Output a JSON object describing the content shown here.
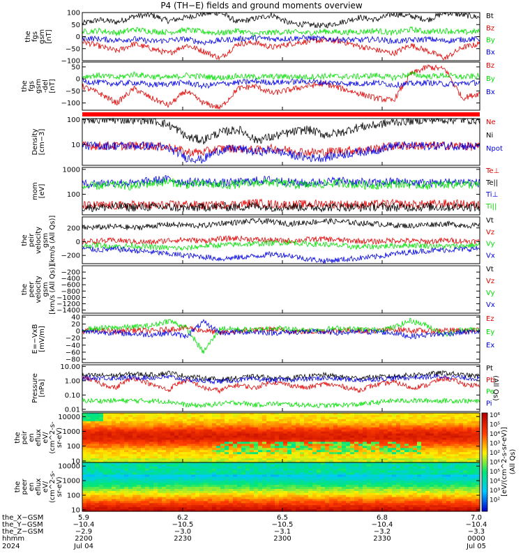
{
  "title": "P4 (TH−E) fields and ground moments overview",
  "colors": {
    "black": "#000000",
    "red": "#e00000",
    "green": "#00e000",
    "blue": "#0000e0",
    "flag_bar": "#ff0000"
  },
  "chart_data": [
    {
      "type": "line",
      "panel": "fgs_gsm",
      "ylabel_lines": [
        "the",
        "fgs",
        "gsm",
        "[nT]"
      ],
      "ylim": [
        -100,
        100
      ],
      "ytick_labels": [
        "100",
        "50",
        "0",
        "−50",
        "−100"
      ],
      "ytick_values": [
        100,
        50,
        0,
        -50,
        -100
      ],
      "series": [
        {
          "name": "Bt",
          "color": "black",
          "values": [
            55,
            70,
            60,
            85,
            90,
            65,
            80,
            95,
            100,
            60,
            75,
            90,
            55,
            50,
            45,
            60,
            80,
            70,
            95,
            85,
            70,
            100,
            90,
            80
          ]
        },
        {
          "name": "Bz",
          "color": "red",
          "values": [
            -20,
            -40,
            -60,
            -30,
            -50,
            -70,
            -35,
            -60,
            -90,
            -30,
            -25,
            -45,
            -30,
            -20,
            -15,
            -20,
            -40,
            -55,
            -70,
            -35,
            -60,
            -90,
            -45,
            -30
          ]
        },
        {
          "name": "By",
          "color": "green",
          "values": [
            20,
            25,
            15,
            30,
            22,
            18,
            28,
            20,
            15,
            25,
            10,
            18,
            20,
            15,
            22,
            18,
            20,
            25,
            15,
            30,
            20,
            25,
            18,
            22
          ]
        },
        {
          "name": "Bx",
          "color": "blue",
          "values": [
            -5,
            -10,
            -15,
            -10,
            -20,
            -15,
            -10,
            -25,
            -15,
            -10,
            -5,
            -10,
            -8,
            -5,
            -10,
            -12,
            -15,
            -10,
            -20,
            -15,
            -10,
            -18,
            -12,
            -10
          ]
        }
      ]
    },
    {
      "type": "line",
      "panel": "fgs_gsm_del",
      "ylabel_lines": [
        "the",
        "fgs",
        "gsm",
        "-del",
        "[nT]"
      ],
      "ylim": [
        -130,
        70
      ],
      "ytick_labels": [
        "50",
        "0",
        "−50",
        "−100"
      ],
      "ytick_values": [
        50,
        0,
        -50,
        -100
      ],
      "series": [
        {
          "name": "Bz",
          "color": "red",
          "values": [
            -30,
            -60,
            -100,
            -40,
            -80,
            -110,
            -50,
            -100,
            -120,
            -40,
            -30,
            -60,
            -45,
            -30,
            -20,
            -40,
            -60,
            -80,
            -90,
            20,
            50,
            40,
            -80,
            -60
          ]
        },
        {
          "name": "By",
          "color": "green",
          "values": [
            10,
            15,
            5,
            20,
            10,
            5,
            15,
            10,
            5,
            12,
            8,
            10,
            10,
            8,
            12,
            10,
            10,
            15,
            5,
            20,
            10,
            15,
            8,
            12
          ]
        },
        {
          "name": "Bx",
          "color": "blue",
          "values": [
            -10,
            -15,
            -20,
            -15,
            -25,
            -20,
            -15,
            -30,
            -20,
            -15,
            -10,
            -15,
            -12,
            -10,
            -15,
            -18,
            -20,
            -15,
            -25,
            -20,
            -15,
            -22,
            -18,
            -15
          ]
        }
      ]
    },
    {
      "type": "line",
      "panel": "density",
      "ylabel_lines": [
        "Density",
        "[cm−3]"
      ],
      "ylim": [
        1.5,
        110
      ],
      "log_scale": true,
      "ytick_labels": [
        "100",
        "10"
      ],
      "ytick_values": [
        100,
        10
      ],
      "series": [
        {
          "name": "Ne",
          "color": "red",
          "values": [
            9,
            9,
            9,
            9,
            9,
            8,
            5,
            5,
            7,
            7,
            6,
            7,
            6,
            5,
            5,
            6,
            6,
            7,
            9,
            9,
            9,
            9,
            9,
            8
          ]
        },
        {
          "name": "Ni",
          "color": "black",
          "values": [
            100,
            100,
            100,
            100,
            95,
            60,
            20,
            15,
            30,
            40,
            15,
            20,
            30,
            40,
            25,
            30,
            50,
            60,
            80,
            90,
            100,
            100,
            100,
            95
          ]
        },
        {
          "name": "Npot",
          "color": "blue",
          "values": [
            9,
            9,
            9,
            9,
            9,
            7,
            3,
            2.5,
            6,
            7,
            5,
            6,
            4,
            3,
            3,
            4,
            5,
            6,
            9,
            9,
            9,
            9,
            9,
            8
          ]
        }
      ]
    },
    {
      "type": "line",
      "panel": "temperature",
      "ylabel_lines": [
        "mom",
        "[eV]"
      ],
      "ylim": [
        15,
        1200
      ],
      "log_scale": true,
      "ytick_labels": [
        "1000",
        "100"
      ],
      "ytick_values": [
        1000,
        100
      ],
      "series": [
        {
          "name": "Te⊥",
          "color": "red",
          "values": [
            35,
            36,
            35,
            38,
            36,
            37,
            40,
            35,
            38,
            40,
            45,
            40,
            38,
            40,
            42,
            40,
            38,
            40,
            42,
            38,
            40,
            42,
            40,
            38
          ]
        },
        {
          "name": "Te||",
          "color": "black",
          "values": [
            30,
            30,
            32,
            30,
            31,
            30,
            28,
            30,
            32,
            30,
            35,
            30,
            32,
            30,
            30,
            31,
            30,
            32,
            30,
            30,
            31,
            30,
            32,
            30
          ]
        },
        {
          "name": "Ti⊥",
          "color": "blue",
          "values": [
            250,
            280,
            300,
            260,
            350,
            400,
            300,
            320,
            280,
            300,
            350,
            380,
            300,
            280,
            320,
            350,
            300,
            280,
            320,
            300,
            280,
            300,
            320,
            280
          ]
        },
        {
          "name": "Ti||",
          "color": "green",
          "values": [
            200,
            220,
            240,
            210,
            280,
            320,
            240,
            260,
            230,
            250,
            290,
            300,
            250,
            230,
            260,
            280,
            240,
            230,
            260,
            250,
            230,
            250,
            260,
            230
          ]
        }
      ]
    },
    {
      "type": "line",
      "panel": "peir_velocity",
      "ylabel_lines": [
        "the",
        "peir",
        "velocity",
        "gsm",
        "[km/s (All Qs)]"
      ],
      "ylim": [
        -320,
        360
      ],
      "ytick_labels": [
        "200",
        "0",
        "−200"
      ],
      "ytick_values": [
        200,
        0,
        -200
      ],
      "series": [
        {
          "name": "Vt",
          "color": "black",
          "values": [
            200,
            210,
            220,
            200,
            230,
            250,
            240,
            230,
            270,
            280,
            300,
            290,
            260,
            280,
            300,
            290,
            270,
            260,
            240,
            230,
            250,
            260,
            240,
            230
          ]
        },
        {
          "name": "Vz",
          "color": "red",
          "values": [
            0,
            10,
            20,
            0,
            -10,
            20,
            30,
            10,
            40,
            50,
            30,
            20,
            10,
            30,
            40,
            20,
            10,
            0,
            20,
            10,
            0,
            20,
            10,
            0
          ]
        },
        {
          "name": "Vy",
          "color": "green",
          "values": [
            -60,
            -50,
            -70,
            -60,
            -80,
            -90,
            -100,
            -60,
            -50,
            -40,
            -30,
            -20,
            -10,
            -30,
            -40,
            -60,
            -80,
            -70,
            -60,
            -50,
            -60,
            -70,
            -60,
            -50
          ]
        },
        {
          "name": "Vx",
          "color": "blue",
          "values": [
            -100,
            -120,
            -110,
            -130,
            -150,
            -180,
            -200,
            -220,
            -250,
            -230,
            -210,
            -180,
            -200,
            -250,
            -280,
            -260,
            -240,
            -220,
            -180,
            -150,
            -130,
            -120,
            -110,
            -100
          ]
        }
      ]
    },
    {
      "type": "line",
      "panel": "peer_velocity",
      "ylabel_lines": [
        "the",
        "peer",
        "velocity",
        "gsm",
        "[km/s (All Qs)]"
      ],
      "ylim": [
        -1500,
        0
      ],
      "ytick_labels": [
        "−200",
        "−400",
        "−600",
        "−800",
        "−1000",
        "−1200",
        "−1400"
      ],
      "ytick_values": [
        -200,
        -400,
        -600,
        -800,
        -1000,
        -1200,
        -1400
      ],
      "series": [
        {
          "name": "Vt",
          "color": "black",
          "values": []
        },
        {
          "name": "Vz",
          "color": "red",
          "values": []
        },
        {
          "name": "Vy",
          "color": "green",
          "values": []
        },
        {
          "name": "Vx",
          "color": "blue",
          "values": []
        }
      ]
    },
    {
      "type": "line",
      "panel": "efield",
      "ylabel_lines": [
        "E=−VxB",
        "[mV/m]"
      ],
      "ylim": [
        -90,
        45
      ],
      "ytick_labels": [
        "40",
        "20",
        "0",
        "−20",
        "−40",
        "−60",
        "−80"
      ],
      "ytick_values": [
        40,
        20,
        0,
        -20,
        -40,
        -60,
        -80
      ],
      "series": [
        {
          "name": "Ez",
          "color": "red",
          "values": [
            0,
            2,
            -2,
            3,
            0,
            5,
            10,
            2,
            -5,
            0,
            2,
            5,
            0,
            -2,
            0,
            3,
            2,
            0,
            5,
            2,
            0,
            3,
            0,
            2
          ]
        },
        {
          "name": "Ey",
          "color": "green",
          "values": [
            5,
            8,
            10,
            12,
            15,
            30,
            10,
            -60,
            8,
            5,
            3,
            10,
            5,
            3,
            5,
            8,
            5,
            3,
            10,
            30,
            15,
            -10,
            5,
            3
          ]
        },
        {
          "name": "Ex",
          "color": "blue",
          "values": [
            -2,
            -3,
            -5,
            -8,
            -10,
            -5,
            -15,
            25,
            -5,
            -3,
            -2,
            -5,
            -3,
            -2,
            -3,
            -5,
            -3,
            -2,
            -5,
            -15,
            -10,
            -8,
            -3,
            -2
          ]
        }
      ]
    },
    {
      "type": "line",
      "panel": "pressure",
      "ylabel_lines": [
        "Pressure",
        "[nPa]"
      ],
      "ylim": [
        0.007,
        13
      ],
      "log_scale": true,
      "ytick_labels": [
        "10.00",
        "1.00",
        "0.10",
        "0.01"
      ],
      "ytick_values": [
        10,
        1,
        0.1,
        0.01
      ],
      "series": [
        {
          "name": "Pt",
          "color": "black",
          "values": [
            2.2,
            2.4,
            2.3,
            3,
            2.5,
            3.5,
            2,
            1.5,
            1.2,
            1.5,
            2,
            1.5,
            1.5,
            2,
            2.5,
            1.8,
            1.5,
            1.8,
            2,
            2.5,
            3,
            3.5,
            2.5,
            2
          ]
        },
        {
          "name": "Pb",
          "color": "red",
          "values": [
            1.8,
            0.6,
            0.3,
            1.5,
            0.5,
            0.2,
            1,
            0.3,
            0.2,
            0.5,
            0.3,
            0.8,
            0.5,
            0.3,
            0.6,
            0.4,
            0.2,
            0.5,
            0.8,
            0.3,
            0.5,
            1.5,
            0.6,
            0.4
          ]
        },
        {
          "name": "Pe",
          "color": "green",
          "values": [
            0.04,
            0.04,
            0.04,
            0.04,
            0.04,
            0.035,
            0.02,
            0.018,
            0.025,
            0.03,
            0.02,
            0.025,
            0.022,
            0.02,
            0.018,
            0.02,
            0.022,
            0.03,
            0.04,
            0.04,
            0.04,
            0.04,
            0.04,
            0.035
          ]
        },
        {
          "name": "Pi",
          "color": "blue",
          "values": [
            1.5,
            1.6,
            1.5,
            1.7,
            1.6,
            1.8,
            1.2,
            1,
            0.9,
            1.1,
            1.3,
            1.1,
            1.2,
            1.3,
            1.5,
            1.3,
            1.1,
            1.3,
            1.5,
            1.7,
            1.8,
            2,
            1.6,
            1.4
          ]
        }
      ],
      "side_label": "(All Qs)"
    },
    {
      "type": "heatmap",
      "panel": "peir_eflux",
      "ylabel_lines": [
        "the",
        "peir",
        "en",
        "eflux",
        "eV/",
        "(cm^2-s-",
        "sr-eV)"
      ],
      "ytick_labels": [
        "10000",
        "1000",
        "100",
        "10"
      ],
      "ytick_values": [
        10000,
        1000,
        100,
        10
      ]
    },
    {
      "type": "heatmap",
      "panel": "peer_eflux",
      "ylabel_lines": [
        "the",
        "peer",
        "en",
        "eflux",
        "eV/",
        "(cm^2-s-",
        "sr-eV)"
      ],
      "ytick_labels": [
        "10000",
        "1000",
        "100",
        "10"
      ],
      "ytick_values": [
        10000,
        1000,
        100,
        10
      ]
    }
  ],
  "colorbar": {
    "tick_labels": [
      "10⁶",
      "10⁵",
      "10⁴",
      "10³",
      "10²",
      "10⁶",
      "10⁵",
      "10⁴",
      "10³",
      "10²"
    ],
    "title": "[eV/(cm^2-s-sr-eV)]",
    "subtitle": "(All Qs)"
  },
  "x_axis": {
    "row_labels": [
      "the_X−GSM",
      "the_Y−GSM",
      "the_Z−GSM",
      "hhmm",
      "2024"
    ],
    "ticks": [
      {
        "rows": [
          "5.9",
          "−10.4",
          "−2.9",
          "2200",
          "Jul 04"
        ]
      },
      {
        "rows": [
          "6.2",
          "−10.5",
          "−3.0",
          "2230",
          ""
        ]
      },
      {
        "rows": [
          "6.5",
          "−10.5",
          "−3.1",
          "2300",
          ""
        ]
      },
      {
        "rows": [
          "6.8",
          "−10.4",
          "−3.2",
          "2330",
          ""
        ]
      },
      {
        "rows": [
          "7.0",
          "−10.4",
          "−3.3",
          "0000",
          "Jul 05"
        ]
      }
    ]
  }
}
